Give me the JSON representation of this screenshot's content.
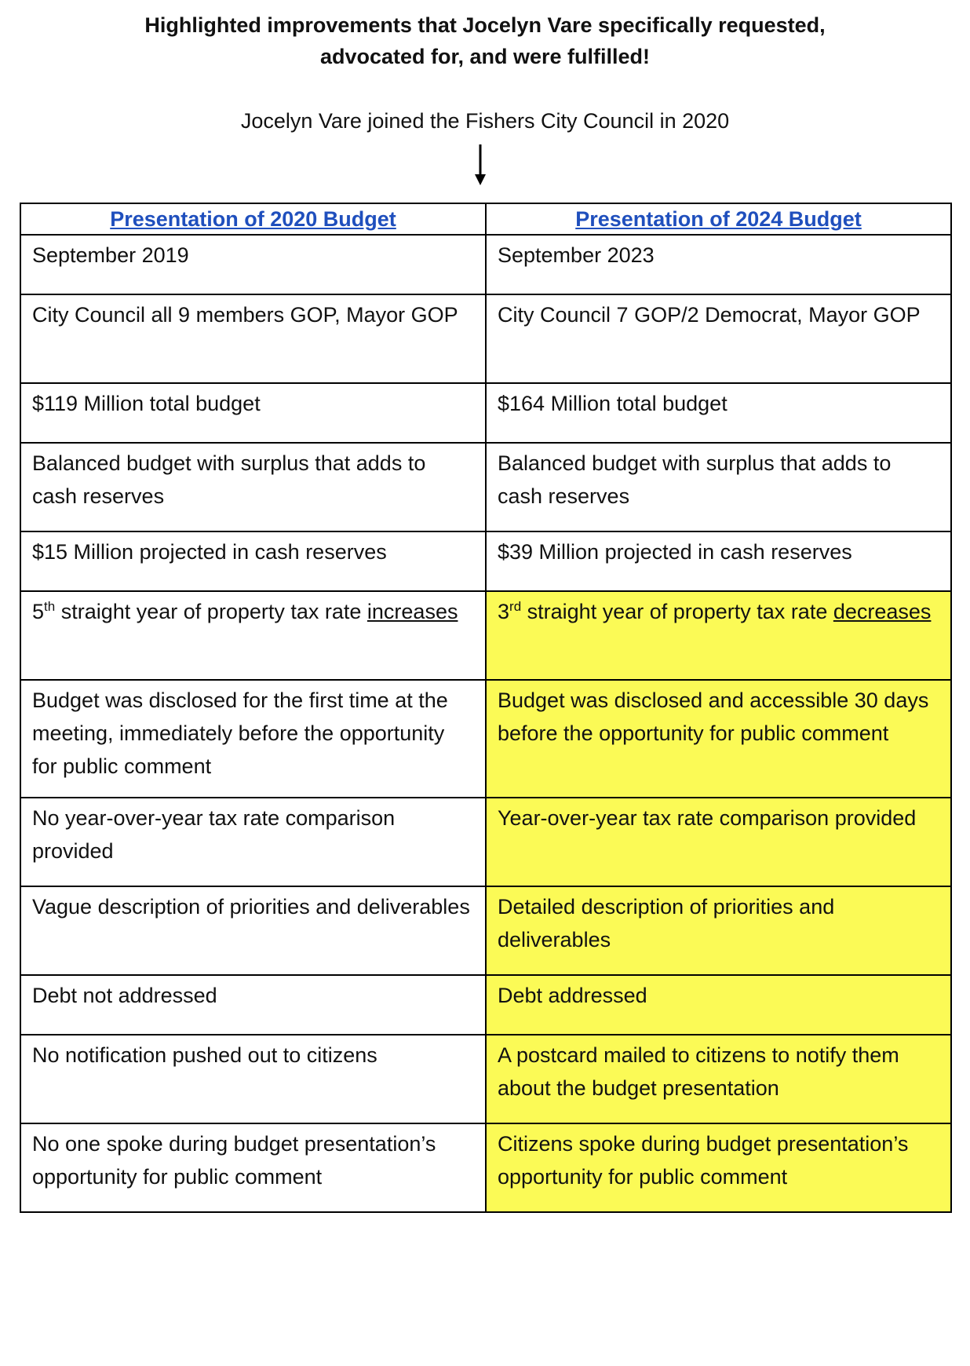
{
  "title": {
    "line1": "Highlighted improvements that Jocelyn Vare specifically requested,",
    "line2": "advocated for, and were fulfilled!"
  },
  "subtitle": "Jocelyn Vare joined the Fishers City Council in 2020",
  "arrow_icon": "down-arrow-icon",
  "table": {
    "headers": [
      "Presentation of 2020 Budget",
      "Presentation of 2024 Budget"
    ],
    "rows": [
      {
        "left": "September 2019",
        "right": "September 2023"
      },
      {
        "left": "City Council all 9 members GOP, Mayor GOP",
        "right": "City Council 7 GOP/2 Democrat, Mayor GOP"
      },
      {
        "left": "$119 Million total budget",
        "right": "$164 Million total budget"
      },
      {
        "left": "Balanced budget with surplus that adds to cash reserves",
        "right": "Balanced budget with surplus that adds to cash reserves"
      },
      {
        "left": "$15 Million projected in cash reserves",
        "right": "$39 Million projected in cash reserves"
      },
      {
        "left_num": "5",
        "left_sup": "th",
        "left_rest": " straight year of property tax rate ",
        "left_under": "increases",
        "right_num": "3",
        "right_sup": "rd",
        "right_rest": " straight year of property tax rate ",
        "right_under": "decreases"
      },
      {
        "left": "Budget was disclosed for the first time at the meeting, immediately before the opportunity for public comment",
        "right": "Budget was disclosed and accessible 30 days before the opportunity for public comment"
      },
      {
        "left": "No year-over-year tax rate comparison provided",
        "right": "Year-over-year tax rate comparison provided"
      },
      {
        "left": "Vague description of priorities and deliverables",
        "right": "Detailed description of priorities and deliverables"
      },
      {
        "left": "Debt not addressed",
        "right": "Debt addressed"
      },
      {
        "left": "No notification pushed out to citizens",
        "right": "A postcard mailed to citizens to notify them about the budget presentation"
      },
      {
        "left": "No one spoke during budget presentation’s opportunity for public comment",
        "right": "Citizens spoke during budget presentation’s opportunity for public comment"
      }
    ]
  },
  "colors": {
    "highlight": "#fbfa56",
    "header_link": "#1f4fbd",
    "border": "#000000"
  }
}
